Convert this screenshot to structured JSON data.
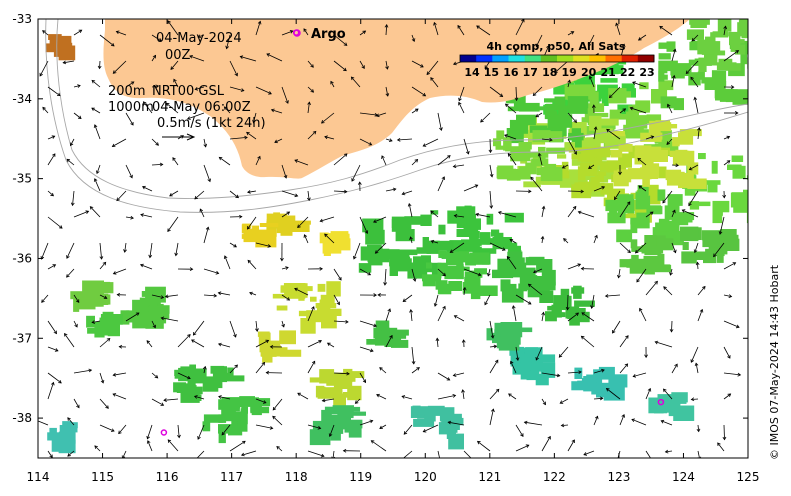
{
  "map": {
    "date_line": "04-May-2024",
    "time_line": "00Z",
    "depth_200": "200m",
    "depth_1000": "1000m",
    "product": "NRT00 GSL",
    "product_time": "04-May 06:00Z",
    "scale_label": "0.5m/s (1kt 24h)",
    "argo_label": "Argo",
    "colorbar_title": "4h comp, p50, All Sats",
    "colorbar_ticks": [
      "14",
      "15",
      "16",
      "17",
      "18",
      "19",
      "20",
      "21",
      "22",
      "23"
    ],
    "credit": "© IMOS 07-May-2024 14:43 Hobart",
    "x_ticks": [
      "114",
      "115",
      "116",
      "117",
      "118",
      "119",
      "120",
      "121",
      "122",
      "123",
      "124",
      "125"
    ],
    "y_ticks": [
      "-33",
      "-34",
      "-35",
      "-36",
      "-37",
      "-38"
    ],
    "lon_range": [
      114,
      125
    ],
    "lat_range": [
      -38.5,
      -33
    ],
    "land_color": "#fcc893",
    "argo_color": "#dd00dd",
    "argo_floats": [
      {
        "lon": 118.0,
        "lat": -33.17
      },
      {
        "lon": 115.95,
        "lat": -38.18
      },
      {
        "lon": 123.65,
        "lat": -37.8
      }
    ],
    "colorbar_colors": [
      "#00008f",
      "#0030ff",
      "#00a0ff",
      "#20e0e0",
      "#40e080",
      "#60c020",
      "#a0e020",
      "#e0e020",
      "#ffc000",
      "#ff7000",
      "#e02000",
      "#900000"
    ]
  }
}
